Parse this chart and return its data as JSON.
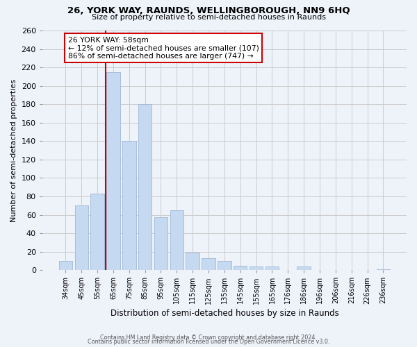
{
  "title": "26, YORK WAY, RAUNDS, WELLINGBOROUGH, NN9 6HQ",
  "subtitle": "Size of property relative to semi-detached houses in Raunds",
  "xlabel": "Distribution of semi-detached houses by size in Raunds",
  "ylabel": "Number of semi-detached properties",
  "categories": [
    "34sqm",
    "45sqm",
    "55sqm",
    "65sqm",
    "75sqm",
    "85sqm",
    "95sqm",
    "105sqm",
    "115sqm",
    "125sqm",
    "135sqm",
    "145sqm",
    "155sqm",
    "165sqm",
    "176sqm",
    "186sqm",
    "196sqm",
    "206sqm",
    "216sqm",
    "226sqm",
    "236sqm"
  ],
  "values": [
    10,
    70,
    83,
    215,
    140,
    180,
    57,
    65,
    19,
    13,
    10,
    5,
    4,
    4,
    0,
    4,
    0,
    0,
    0,
    0,
    1
  ],
  "bar_color": "#c5d9f0",
  "bar_edge_color": "#a0b8d8",
  "vline_color": "#cc0000",
  "vline_x": 2.5,
  "annotation_line1": "26 YORK WAY: 58sqm",
  "annotation_line2": "← 12% of semi-detached houses are smaller (107)",
  "annotation_line3": "86% of semi-detached houses are larger (747) →",
  "annotation_box_color": "#ffffff",
  "annotation_box_edge": "#cc0000",
  "ylim": [
    0,
    260
  ],
  "yticks": [
    0,
    20,
    40,
    60,
    80,
    100,
    120,
    140,
    160,
    180,
    200,
    220,
    240,
    260
  ],
  "grid_color": "#cccccc",
  "background_color": "#eef2f9",
  "footer_line1": "Contains HM Land Registry data © Crown copyright and database right 2024.",
  "footer_line2": "Contains public sector information licensed under the Open Government Licence v3.0."
}
